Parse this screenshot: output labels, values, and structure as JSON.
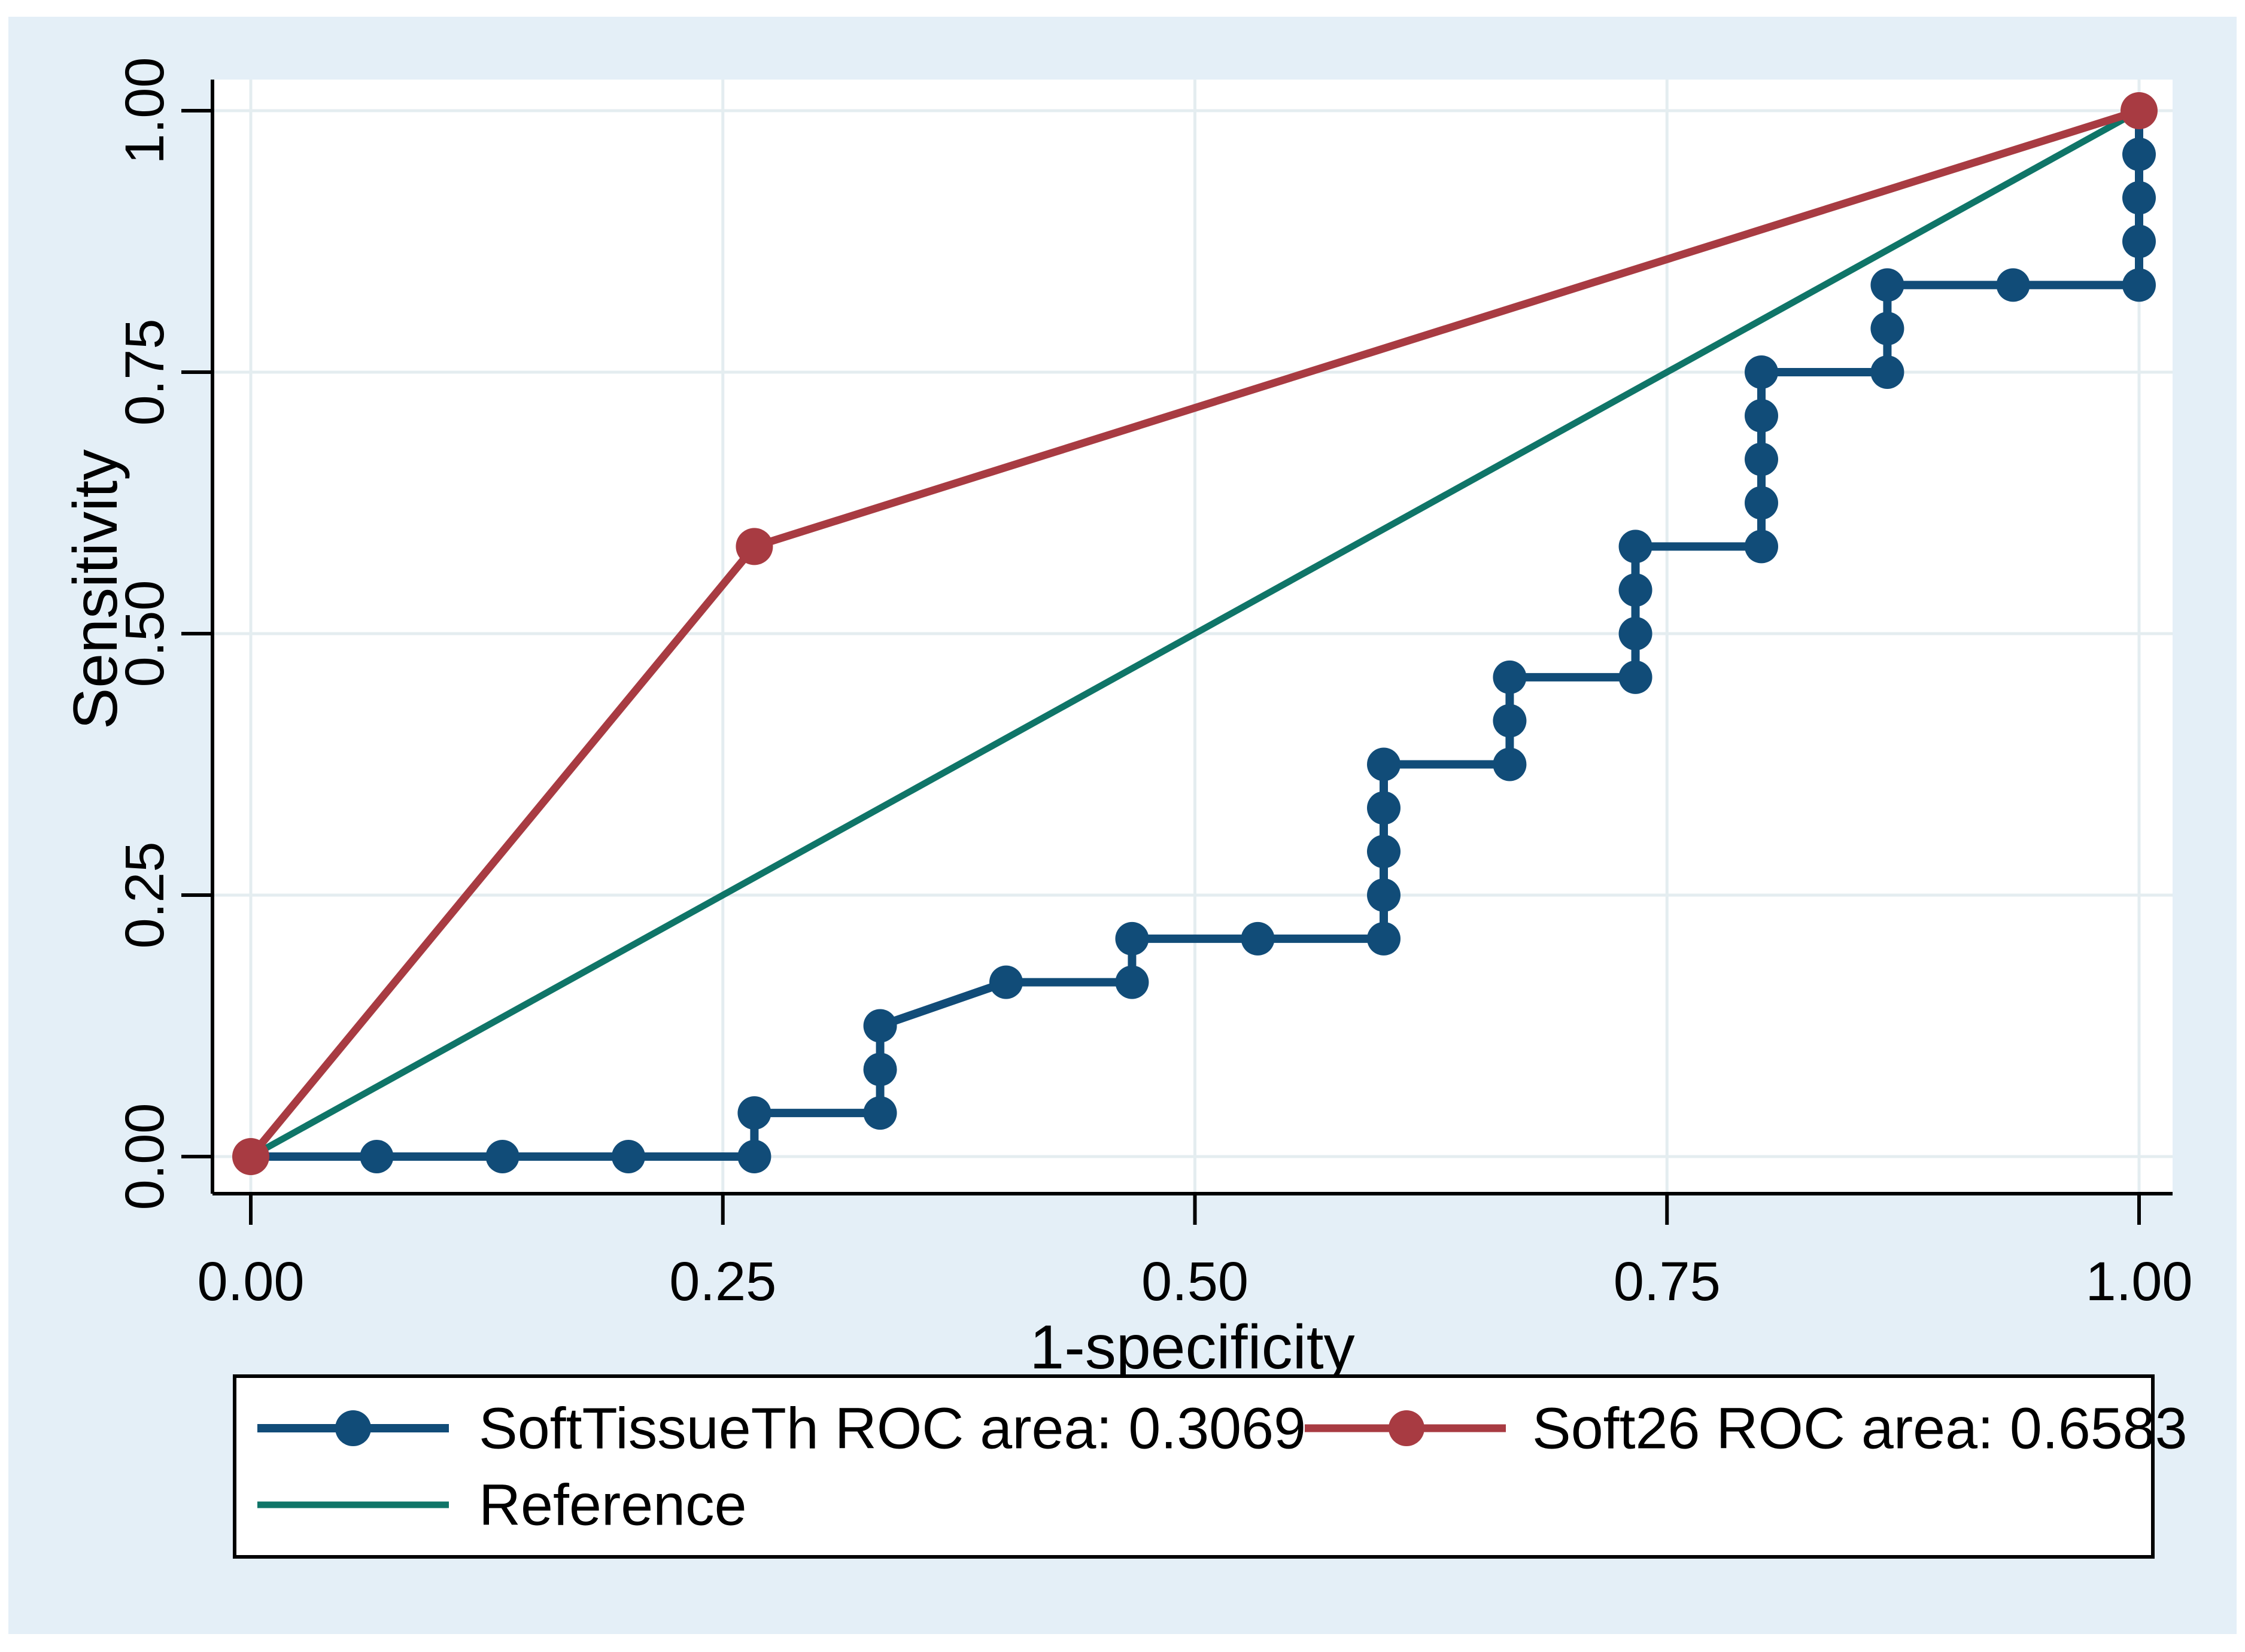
{
  "chart_data": {
    "type": "line",
    "subtype": "roc-step-comparison",
    "title": "",
    "xlabel": "1-specificity",
    "ylabel": "Sensitivity",
    "xlim": [
      0,
      1
    ],
    "ylim": [
      0,
      1
    ],
    "grid": true,
    "legend_position": "bottom-box",
    "xticks": {
      "values": [
        0,
        0.25,
        0.5,
        0.75,
        1
      ],
      "labels": [
        "0.00",
        "0.25",
        "0.50",
        "0.75",
        "1.00"
      ]
    },
    "yticks": {
      "values": [
        0,
        0.25,
        0.5,
        0.75,
        1
      ],
      "labels": [
        "0.00",
        "0.25",
        "0.50",
        "0.75",
        "1.00"
      ]
    },
    "series": [
      {
        "name": "SoftTissueTh",
        "label": "SoftTissueTh ROC area: 0.3069",
        "roc_area": 0.3069,
        "color": "#114C78",
        "marker": true,
        "points": [
          [
            0,
            0
          ],
          [
            0.0667,
            0
          ],
          [
            0.1333,
            0
          ],
          [
            0.2,
            0
          ],
          [
            0.2667,
            0
          ],
          [
            0.2667,
            0.0417
          ],
          [
            0.3333,
            0.0417
          ],
          [
            0.3333,
            0.0833
          ],
          [
            0.3333,
            0.125
          ],
          [
            0.4,
            0.1667
          ],
          [
            0.4667,
            0.1667
          ],
          [
            0.4667,
            0.2083
          ],
          [
            0.5333,
            0.2083
          ],
          [
            0.6,
            0.2083
          ],
          [
            0.6,
            0.25
          ],
          [
            0.6,
            0.2917
          ],
          [
            0.6,
            0.3333
          ],
          [
            0.6,
            0.375
          ],
          [
            0.6667,
            0.375
          ],
          [
            0.6667,
            0.4167
          ],
          [
            0.6667,
            0.4583
          ],
          [
            0.7333,
            0.4583
          ],
          [
            0.7333,
            0.5
          ],
          [
            0.7333,
            0.5417
          ],
          [
            0.7333,
            0.5833
          ],
          [
            0.8,
            0.5833
          ],
          [
            0.8,
            0.625
          ],
          [
            0.8,
            0.6667
          ],
          [
            0.8,
            0.7083
          ],
          [
            0.8,
            0.75
          ],
          [
            0.8667,
            0.75
          ],
          [
            0.8667,
            0.7917
          ],
          [
            0.8667,
            0.8333
          ],
          [
            0.9333,
            0.8333
          ],
          [
            1,
            0.8333
          ],
          [
            1,
            0.875
          ],
          [
            1,
            0.9167
          ],
          [
            1,
            0.9583
          ],
          [
            1,
            1
          ]
        ]
      },
      {
        "name": "Soft26",
        "label": "Soft26 ROC area: 0.6583",
        "roc_area": 0.6583,
        "color": "#A83B42",
        "marker": true,
        "points": [
          [
            0,
            0
          ],
          [
            0.2667,
            0.5833
          ],
          [
            1,
            1
          ]
        ]
      },
      {
        "name": "Reference",
        "label": "Reference",
        "color": "#0F7568",
        "marker": false,
        "points": [
          [
            0,
            0
          ],
          [
            1,
            1
          ]
        ]
      }
    ],
    "colors": {
      "figure_background": "#E4EFF7",
      "plot_background": "#FFFFFF",
      "gridline": "#E4EDF0",
      "axis": "#000000",
      "text": "#000000",
      "legend_background": "#FFFFFF",
      "legend_border": "#000000"
    }
  }
}
